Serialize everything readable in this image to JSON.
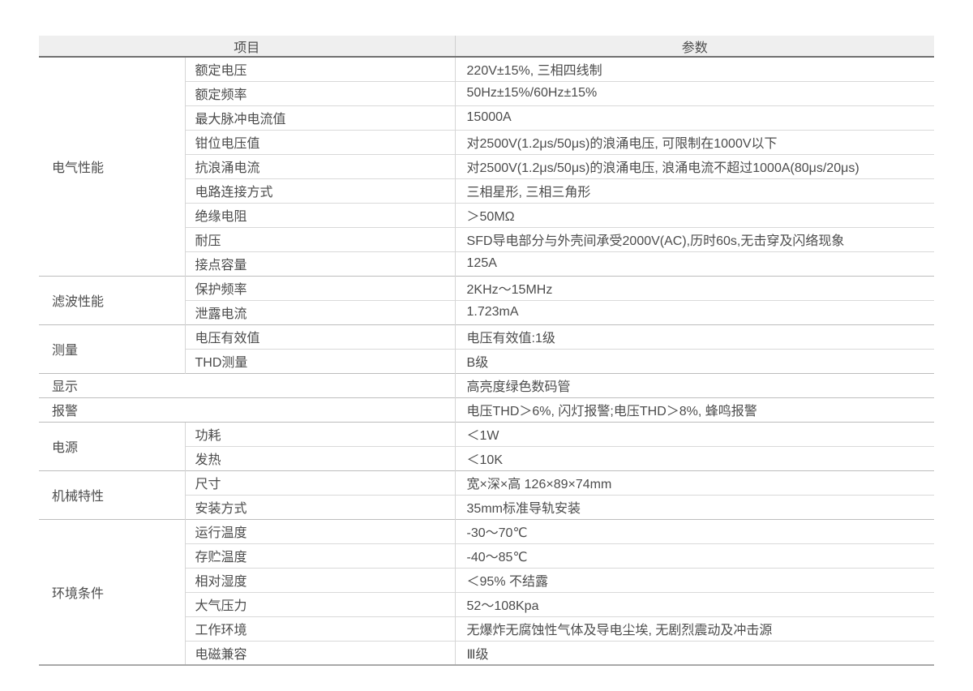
{
  "header": {
    "item_label": "项目",
    "param_label": "参数"
  },
  "groups": [
    {
      "name": "电气性能",
      "rows": [
        {
          "item": "额定电压",
          "value": "220V±15%, 三相四线制"
        },
        {
          "item": "额定频率",
          "value": "50Hz±15%/60Hz±15%"
        },
        {
          "item": "最大脉冲电流值",
          "value": "15000A"
        },
        {
          "item": "钳位电压值",
          "value": "对2500V(1.2μs/50μs)的浪涌电压, 可限制在1000V以下"
        },
        {
          "item": "抗浪涌电流",
          "value": "对2500V(1.2μs/50μs)的浪涌电压, 浪涌电流不超过1000A(80μs/20μs)"
        },
        {
          "item": "电路连接方式",
          "value": "三相星形, 三相三角形"
        },
        {
          "item": "绝缘电阻",
          "value": "＞50MΩ"
        },
        {
          "item": "耐压",
          "value": "SFD导电部分与外壳间承受2000V(AC),历时60s,无击穿及闪络现象"
        },
        {
          "item": "接点容量",
          "value": "125A"
        }
      ]
    },
    {
      "name": "滤波性能",
      "rows": [
        {
          "item": "保护频率",
          "value": "2KHz～15MHz"
        },
        {
          "item": "泄露电流",
          "value": "1.723mA"
        }
      ]
    },
    {
      "name": "测量",
      "rows": [
        {
          "item": "电压有效值",
          "value": "电压有效值:1级"
        },
        {
          "item": "THD测量",
          "value": "B级"
        }
      ]
    },
    {
      "name": "显示",
      "rows": [
        {
          "item": null,
          "value": "高亮度绿色数码管"
        }
      ]
    },
    {
      "name": "报警",
      "rows": [
        {
          "item": null,
          "value": "电压THD＞6%, 闪灯报警;电压THD＞8%, 蜂鸣报警"
        }
      ]
    },
    {
      "name": "电源",
      "rows": [
        {
          "item": "功耗",
          "value": "＜1W"
        },
        {
          "item": "发热",
          "value": "＜10K"
        }
      ]
    },
    {
      "name": "机械特性",
      "rows": [
        {
          "item": "尺寸",
          "value": "宽×深×高 126×89×74mm"
        },
        {
          "item": "安装方式",
          "value": "35mm标准导轨安装"
        }
      ]
    },
    {
      "name": "环境条件",
      "rows": [
        {
          "item": "运行温度",
          "value": "-30～70℃"
        },
        {
          "item": "存贮温度",
          "value": "-40～85℃"
        },
        {
          "item": "相对湿度",
          "value": "＜95% 不结露"
        },
        {
          "item": "大气压力",
          "value": "52～108Kpa"
        },
        {
          "item": "工作环境",
          "value": "无爆炸无腐蚀性气体及导电尘埃, 无剧烈震动及冲击源"
        },
        {
          "item": "电磁兼容",
          "value": "Ⅲ级"
        }
      ]
    }
  ],
  "colors": {
    "header_bg": "#efefef",
    "text": "#4c4c4c",
    "header_rule": "#707070",
    "group_rule": "#bdbdbd",
    "row_rule": "#d9d9d9",
    "column_rule": "#d6d6d6",
    "bottom_rule": "#a9a9a9"
  }
}
